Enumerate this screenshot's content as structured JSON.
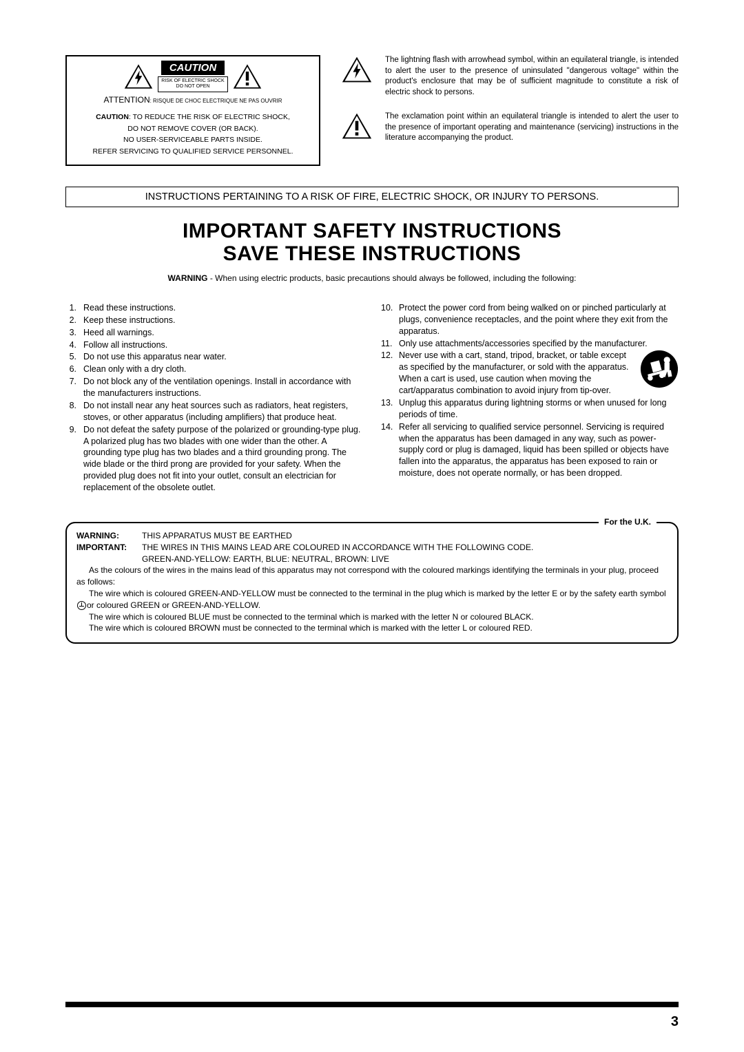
{
  "cautionBox": {
    "cautionLabel": "CAUTION",
    "riskLine1": "RISK OF ELECTRIC SHOCK",
    "riskLine2": "DO NOT OPEN",
    "attentionBig": "ATTENTION",
    "attentionSmall": ": RISQUE DE CHOC ELECTRIQUE NE PAS OUVRIR",
    "boldLead": "CAUTION",
    "line1": ":  TO REDUCE THE RISK OF ELECTRIC SHOCK,",
    "line2": "DO NOT REMOVE COVER (OR BACK).",
    "line3": "NO USER-SERVICEABLE PARTS INSIDE.",
    "line4": "REFER SERVICING TO QUALIFIED SERVICE PERSONNEL."
  },
  "symbolDesc": {
    "lightning": "The lightning flash with arrowhead symbol, within an equilateral triangle, is intended to alert the user to the presence of uninsulated \"dangerous voltage\" within the product's enclosure that may be of sufficient magnitude to constitute a risk of electric shock to persons.",
    "exclamation": "The exclamation point within an equilateral triangle is intended to alert the user to the presence of important operating and maintenance (servicing) instructions in the literature accompanying the product."
  },
  "instructionsBar": "INSTRUCTIONS PERTAINING TO A RISK OF FIRE, ELECTRIC SHOCK, OR INJURY TO PERSONS.",
  "heading1": "IMPORTANT SAFETY INSTRUCTIONS",
  "heading2": "SAVE THESE INSTRUCTIONS",
  "warningLead": "WARNING",
  "warningText": " - When using electric products, basic precautions should always be followed, including the following:",
  "leftItems": [
    "Read these instructions.",
    "Keep these instructions.",
    "Heed all warnings.",
    "Follow all instructions.",
    "Do not use this apparatus near water.",
    "Clean only with a dry cloth.",
    "Do not block any of the ventilation openings. Install in accordance with the manufacturers instructions.",
    "Do not install near any heat sources such as radiators, heat registers, stoves, or other apparatus (including amplifiers) that produce heat.",
    "Do not defeat the safety purpose of the polarized or grounding-type plug. A polarized plug has two blades with one wider than the other. A grounding type plug has two blades and a third grounding prong. The wide blade or the third prong are provided for your safety. When the provided plug does not fit into your outlet, consult an electrician for replacement of the obsolete outlet."
  ],
  "rightItems": [
    "Protect the power cord from being walked on or pinched particularly at plugs, convenience receptacles, and the point where they exit from the apparatus.",
    "Only use attachments/accessories specified by the manufacturer.",
    "Never use with a cart, stand, tripod, bracket, or table except as specified by the manufacturer, or sold with the apparatus. When a cart is used, use caution when moving the cart/apparatus combination to avoid injury from tip-over.",
    "Unplug this apparatus during lightning storms or when unused for long periods of time.",
    "Refer all servicing to qualified service personnel. Servicing is required when the apparatus has been damaged in any way, such as power-supply cord or plug is damaged, liquid has been spilled or objects have fallen into the apparatus, the apparatus has been exposed to rain or moisture, does not operate normally, or has been dropped."
  ],
  "uk": {
    "legend": "For the U.K.",
    "warningLabel": "WARNING:",
    "warningText": "THIS APPARATUS MUST BE EARTHED",
    "importantLabel": "IMPORTANT:",
    "importantText1": "THE WIRES IN THIS MAINS LEAD ARE COLOURED IN ACCORDANCE WITH THE FOLLOWING CODE.",
    "importantText2": "GREEN-AND-YELLOW: EARTH, BLUE: NEUTRAL, BROWN: LIVE",
    "para1": "As the colours of the wires in the mains lead of this apparatus may not correspond with the coloured markings identifying the terminals in your plug, proceed as follows:",
    "para2a": "The wire which is coloured GREEN-AND-YELLOW must be connected to the terminal in the plug which is marked by the letter E or by the safety earth symbol",
    "para2b": "or coloured GREEN or GREEN-AND-YELLOW.",
    "para3": "The wire which is coloured BLUE must be connected to the terminal which is marked with the letter N or coloured BLACK.",
    "para4": "The wire which is coloured BROWN must be connected to the terminal which is marked with the letter L or coloured RED."
  },
  "pageNumber": "3"
}
